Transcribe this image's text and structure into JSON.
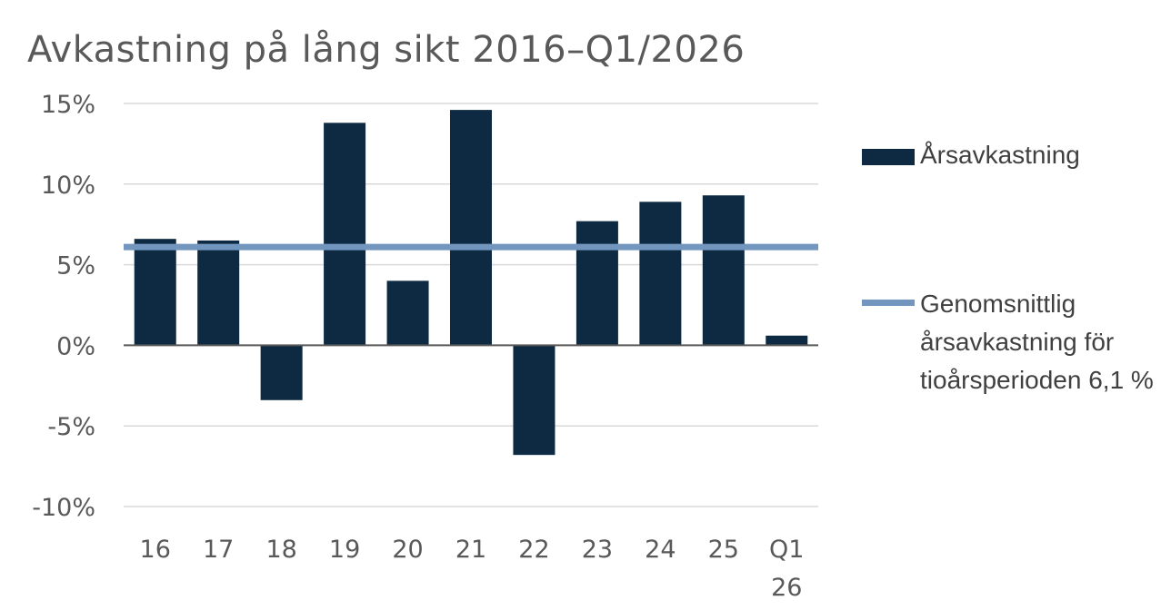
{
  "title": "Avkastning på lång sikt 2016–Q1/2026",
  "chart_data": {
    "type": "bar",
    "categories": [
      "16",
      "17",
      "18",
      "19",
      "20",
      "21",
      "22",
      "23",
      "24",
      "25",
      "Q1\n26"
    ],
    "series": [
      {
        "name": "Årsavkastning",
        "values": [
          6.6,
          6.5,
          -3.4,
          13.8,
          4.0,
          14.6,
          -6.8,
          7.7,
          8.9,
          9.3,
          0.6
        ],
        "color": "#0d2a42"
      }
    ],
    "reference_line": {
      "name": "Genomsnittlig årsavkastning för tioårsperioden 6,1 %",
      "value": 6.1,
      "color": "#7396bf"
    },
    "y_ticks": [
      "-10%",
      "-5%",
      "0%",
      "5%",
      "10%",
      "15%"
    ],
    "ylim": [
      -10,
      15
    ],
    "grid": true,
    "legend_position": "right"
  },
  "legend": {
    "bar_label": "Årsavkastning",
    "line_label": "Genomsnittlig årsavkastning för tioårsperioden 6,1 %"
  }
}
